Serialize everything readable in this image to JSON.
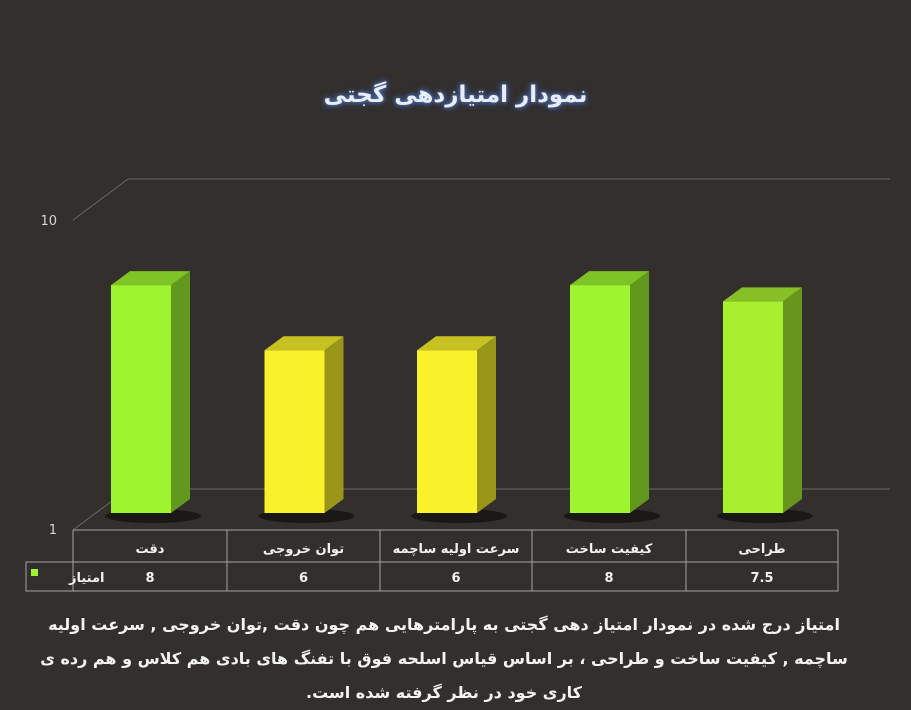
{
  "chart_data": {
    "type": "bar",
    "title": "نمودار امتیازدهی گجتی",
    "categories": [
      "دقت",
      "توان خروجی",
      "سرعت اولیه ساچمه",
      "کیفیت ساخت",
      "طراحی"
    ],
    "series": [
      {
        "name": "امتیاز",
        "values": [
          8,
          6,
          6,
          8,
          7.5
        ],
        "value_labels": [
          "8",
          "6",
          "6",
          "8",
          "7.5"
        ]
      }
    ],
    "ylim": [
      1,
      10
    ],
    "yticks": [
      "1",
      "10"
    ],
    "colors": [
      "#9ef52f",
      "#f9f22a",
      "#f9f22a",
      "#9ef52f",
      "#a8f02f"
    ],
    "legend": "data-table"
  },
  "caption": "امتیاز درج شده در نمودار امتیاز دهی گجتی  به پارامترهایی هم چون دقت ,توان خروجی , سرعت اولیه ساچمه , کیفیت ساخت و طراحی ، بر اساس قیاس اسلحه فوق با تفنگ های بادی هم کلاس و هم رده ی کاری خود در نظر گرفته شده است."
}
